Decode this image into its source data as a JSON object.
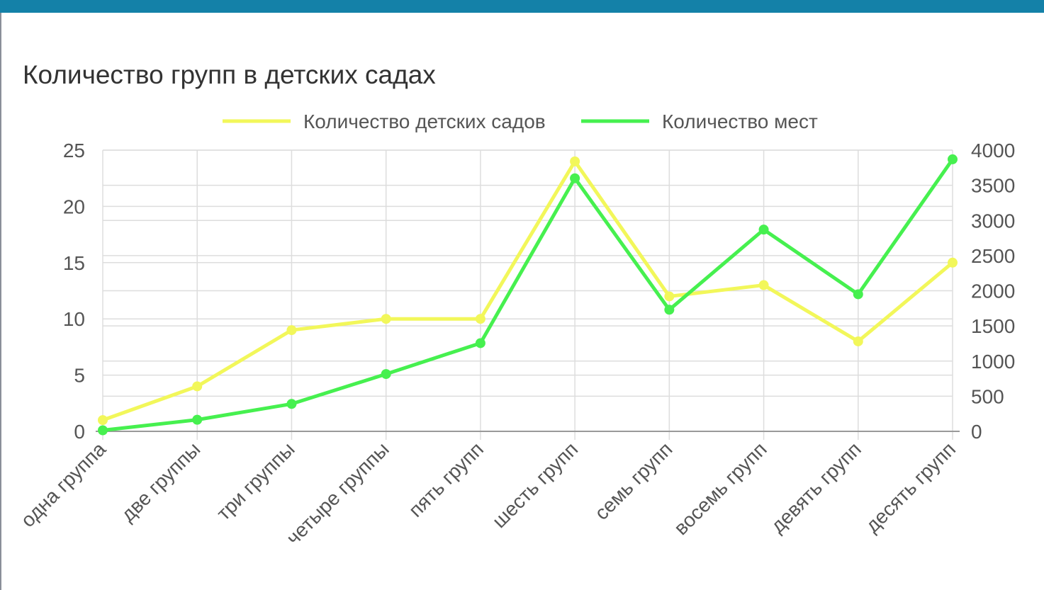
{
  "page": {
    "title": "Количество групп в детских садах"
  },
  "colors": {
    "header_bar": "#1481a8",
    "series_gardens": "#f2f75a",
    "series_places": "#46f04f",
    "grid": "#dddddd",
    "axis_text": "#555555"
  },
  "chart_data": {
    "type": "line",
    "title": "",
    "categories": [
      "одна группа",
      "две группы",
      "три группы",
      "четыре группы",
      "пять групп",
      "шесть групп",
      "семь групп",
      "восемь групп",
      "девять групп",
      "десять групп"
    ],
    "series": [
      {
        "name": "Количество детских садов",
        "axis": "left",
        "color": "#f2f75a",
        "values": [
          1,
          4,
          9,
          10,
          10,
          24,
          12,
          13,
          8,
          15
        ]
      },
      {
        "name": "Количество мест",
        "axis": "right",
        "color": "#46f04f",
        "values": [
          15,
          165,
          390,
          815,
          1255,
          3600,
          1730,
          2870,
          1950,
          3870
        ]
      }
    ],
    "y_left": {
      "min": 0,
      "max": 25,
      "ticks": [
        0,
        5,
        10,
        15,
        20,
        25
      ]
    },
    "y_right": {
      "min": 0,
      "max": 4000,
      "ticks": [
        0,
        500,
        1000,
        1500,
        2000,
        2500,
        3000,
        3500,
        4000
      ]
    },
    "grid": true,
    "legend_position": "top"
  }
}
